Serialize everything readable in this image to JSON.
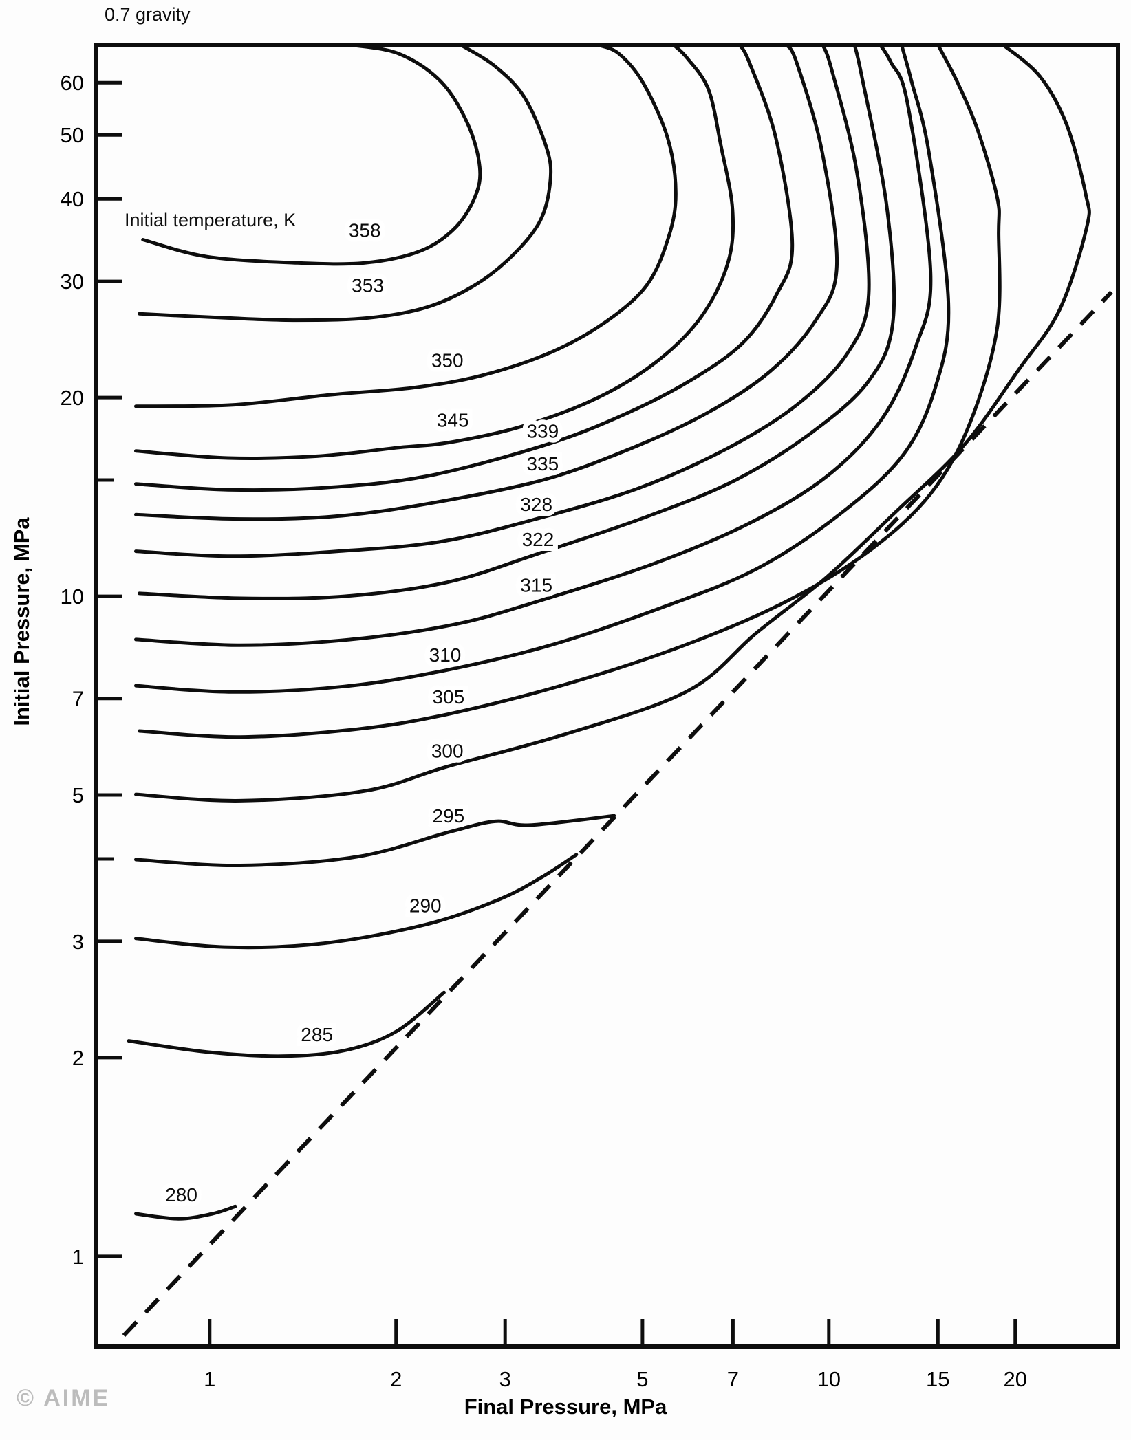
{
  "title": "0.7 gravity",
  "watermark": "© AIME",
  "chart_data": {
    "type": "contour",
    "title": "0.7 gravity",
    "xlabel": "Final Pressure, MPa",
    "ylabel": "Initial Pressure, MPa",
    "contour_set_label": "Initial temperature, K",
    "x_scale": "log",
    "y_scale": "log",
    "xlim": [
      0.656,
      29.3
    ],
    "ylim": [
      0.73,
      68.5
    ],
    "grid": false,
    "line_color": "#0d0d0d",
    "x_ticks": [
      {
        "value": 1,
        "label": "1"
      },
      {
        "value": 2,
        "label": "2"
      },
      {
        "value": 3,
        "label": "3"
      },
      {
        "value": 5,
        "label": "5"
      },
      {
        "value": 7,
        "label": "7"
      },
      {
        "value": 10,
        "label": "10"
      },
      {
        "value": 15,
        "label": "15"
      },
      {
        "value": 20,
        "label": "20"
      }
    ],
    "y_ticks": [
      {
        "value": 1,
        "label": "1"
      },
      {
        "value": 2,
        "label": "2"
      },
      {
        "value": 3,
        "label": "3"
      },
      {
        "value": 4,
        "label": ""
      },
      {
        "value": 5,
        "label": "5"
      },
      {
        "value": 7,
        "label": "7"
      },
      {
        "value": 10,
        "label": "10"
      },
      {
        "value": 15,
        "label": ""
      },
      {
        "value": 20,
        "label": "20"
      },
      {
        "value": 30,
        "label": "30"
      },
      {
        "value": 40,
        "label": "40"
      },
      {
        "value": 50,
        "label": "50"
      },
      {
        "value": 60,
        "label": "60"
      }
    ],
    "identity_line": {
      "style": "dashed",
      "meaning": "Final pressure equals initial pressure (y = x)",
      "points": [
        [
          0.67,
          0.7
        ],
        [
          28.6,
          28.9
        ]
      ]
    },
    "contours": [
      {
        "level": 280,
        "label": "280",
        "label_pos": [
          0.9,
          1.24
        ],
        "points": [
          [
            0.76,
            1.16
          ],
          [
            0.89,
            1.14
          ],
          [
            1.01,
            1.16
          ],
          [
            1.1,
            1.19
          ]
        ]
      },
      {
        "level": 285,
        "label": "285",
        "label_pos": [
          1.49,
          2.17
        ],
        "points": [
          [
            0.74,
            2.12
          ],
          [
            0.99,
            2.04
          ],
          [
            1.31,
            2.01
          ],
          [
            1.65,
            2.05
          ],
          [
            2.0,
            2.19
          ],
          [
            2.39,
            2.51
          ]
        ]
      },
      {
        "level": 290,
        "label": "290",
        "label_pos": [
          2.23,
          3.4
        ],
        "points": [
          [
            0.76,
            3.03
          ],
          [
            1.07,
            2.94
          ],
          [
            1.53,
            2.98
          ],
          [
            2.23,
            3.18
          ],
          [
            2.93,
            3.47
          ],
          [
            3.45,
            3.76
          ],
          [
            3.91,
            4.06
          ]
        ]
      },
      {
        "level": 295,
        "label": "295",
        "label_pos": [
          2.43,
          4.65
        ],
        "points": [
          [
            0.76,
            3.99
          ],
          [
            1.12,
            3.91
          ],
          [
            1.73,
            4.03
          ],
          [
            2.43,
            4.39
          ],
          [
            2.89,
            4.56
          ],
          [
            3.29,
            4.5
          ],
          [
            4.5,
            4.65
          ]
        ]
      },
      {
        "level": 300,
        "label": "300",
        "label_pos": [
          2.42,
          5.84
        ],
        "points": [
          [
            0.76,
            5.01
          ],
          [
            1.12,
            4.9
          ],
          [
            1.78,
            5.07
          ],
          [
            2.42,
            5.52
          ],
          [
            3.73,
            6.17
          ],
          [
            5.91,
            7.18
          ],
          [
            7.64,
            8.8
          ],
          [
            9.93,
            10.7
          ],
          [
            12.8,
            13.4
          ],
          [
            16.5,
            16.9
          ],
          [
            20.3,
            22.1
          ],
          [
            23.6,
            27.2
          ],
          [
            26.1,
            36.3
          ],
          [
            26.0,
            40.6
          ],
          [
            24.2,
            51.9
          ],
          [
            21.9,
            61.4
          ],
          [
            19.1,
            68.5
          ]
        ]
      },
      {
        "level": 305,
        "label": "305",
        "label_pos": [
          2.43,
          7.05
        ],
        "points": [
          [
            0.77,
            6.25
          ],
          [
            1.12,
            6.12
          ],
          [
            1.73,
            6.29
          ],
          [
            2.43,
            6.63
          ],
          [
            3.73,
            7.34
          ],
          [
            5.77,
            8.39
          ],
          [
            8.48,
            9.79
          ],
          [
            11.6,
            11.7
          ],
          [
            14.6,
            14.3
          ],
          [
            16.9,
            18.3
          ],
          [
            18.7,
            25.5
          ],
          [
            18.8,
            35.5
          ],
          [
            18.7,
            40.2
          ],
          [
            17.4,
            50.8
          ],
          [
            16.1,
            60.3
          ],
          [
            15.0,
            68.5
          ]
        ]
      },
      {
        "level": 310,
        "label": "310",
        "label_pos": [
          2.4,
          8.16
        ],
        "points": [
          [
            0.76,
            7.32
          ],
          [
            1.09,
            7.16
          ],
          [
            1.65,
            7.3
          ],
          [
            2.4,
            7.72
          ],
          [
            3.55,
            8.43
          ],
          [
            5.35,
            9.6
          ],
          [
            7.64,
            11.0
          ],
          [
            10.4,
            13.3
          ],
          [
            13.2,
            16.4
          ],
          [
            14.9,
            20.9
          ],
          [
            15.6,
            27.8
          ],
          [
            14.5,
            47.2
          ],
          [
            13.6,
            60.3
          ],
          [
            13.1,
            68.5
          ]
        ]
      },
      {
        "level": 315,
        "label": "315",
        "label_pos": [
          3.37,
          10.4
        ],
        "points": [
          [
            0.76,
            8.6
          ],
          [
            1.12,
            8.43
          ],
          [
            1.69,
            8.6
          ],
          [
            2.48,
            9.06
          ],
          [
            3.37,
            9.81
          ],
          [
            5.21,
            11.2
          ],
          [
            7.44,
            12.9
          ],
          [
            9.93,
            15.2
          ],
          [
            12.2,
            18.6
          ],
          [
            13.8,
            23.8
          ],
          [
            14.6,
            30.9
          ],
          [
            13.4,
            55.8
          ],
          [
            12.6,
            64.4
          ],
          [
            12.1,
            68.5
          ]
        ]
      },
      {
        "level": 322,
        "label": "322",
        "label_pos": [
          3.39,
          12.2
        ],
        "points": [
          [
            0.77,
            10.1
          ],
          [
            1.12,
            9.93
          ],
          [
            1.65,
            10.0
          ],
          [
            2.42,
            10.5
          ],
          [
            3.39,
            11.6
          ],
          [
            5.08,
            13.2
          ],
          [
            7.07,
            15.0
          ],
          [
            9.38,
            17.7
          ],
          [
            11.6,
            21.2
          ],
          [
            12.7,
            26.2
          ],
          [
            12.4,
            39.0
          ],
          [
            11.3,
            61.4
          ],
          [
            11.0,
            68.5
          ]
        ]
      },
      {
        "level": 328,
        "label": "328",
        "label_pos": [
          3.37,
          13.8
        ],
        "points": [
          [
            0.76,
            11.7
          ],
          [
            1.09,
            11.5
          ],
          [
            1.61,
            11.7
          ],
          [
            2.36,
            12.1
          ],
          [
            3.37,
            13.1
          ],
          [
            4.95,
            14.6
          ],
          [
            6.9,
            16.8
          ],
          [
            8.88,
            19.5
          ],
          [
            10.7,
            23.3
          ],
          [
            11.6,
            28.7
          ],
          [
            11.1,
            43.9
          ],
          [
            10.1,
            62.9
          ],
          [
            9.77,
            68.5
          ]
        ]
      },
      {
        "level": 335,
        "label": "335",
        "label_pos": [
          3.45,
          15.9
        ],
        "points": [
          [
            0.76,
            13.3
          ],
          [
            1.09,
            13.1
          ],
          [
            1.57,
            13.2
          ],
          [
            2.24,
            13.8
          ],
          [
            3.45,
            15.0
          ],
          [
            4.83,
            16.8
          ],
          [
            6.39,
            19.0
          ],
          [
            8.03,
            21.9
          ],
          [
            9.5,
            26.1
          ],
          [
            10.3,
            31.6
          ],
          [
            9.75,
            47.2
          ],
          [
            8.87,
            64.4
          ],
          [
            8.54,
            68.5
          ]
        ]
      },
      {
        "level": 339,
        "label": "339",
        "label_pos": [
          3.45,
          17.8
        ],
        "points": [
          [
            0.76,
            14.8
          ],
          [
            1.07,
            14.5
          ],
          [
            1.53,
            14.6
          ],
          [
            2.24,
            15.2
          ],
          [
            3.45,
            16.9
          ],
          [
            4.58,
            18.7
          ],
          [
            5.91,
            21.1
          ],
          [
            7.26,
            24.2
          ],
          [
            8.24,
            28.7
          ],
          [
            8.73,
            34.1
          ],
          [
            8.21,
            49.5
          ],
          [
            7.44,
            64.4
          ],
          [
            7.17,
            68.5
          ]
        ]
      },
      {
        "level": 345,
        "label": "345",
        "label_pos": [
          2.47,
          18.5
        ],
        "points": [
          [
            0.76,
            16.6
          ],
          [
            1.07,
            16.2
          ],
          [
            1.49,
            16.3
          ],
          [
            2.02,
            16.8
          ],
          [
            2.44,
            17.1
          ],
          [
            3.2,
            18.1
          ],
          [
            4.24,
            20.0
          ],
          [
            5.28,
            22.7
          ],
          [
            6.22,
            26.5
          ],
          [
            6.87,
            32.0
          ],
          [
            6.99,
            38.5
          ],
          [
            6.69,
            48.3
          ],
          [
            6.39,
            58.6
          ],
          [
            5.91,
            65.3
          ],
          [
            5.61,
            68.5
          ]
        ]
      },
      {
        "level": 350,
        "label": "350",
        "label_pos": [
          2.42,
          22.8
        ],
        "points": [
          [
            0.76,
            19.4
          ],
          [
            1.09,
            19.5
          ],
          [
            1.57,
            20.2
          ],
          [
            2.13,
            20.7
          ],
          [
            2.75,
            21.6
          ],
          [
            3.55,
            23.4
          ],
          [
            4.35,
            26.0
          ],
          [
            5.08,
            29.6
          ],
          [
            5.51,
            35.0
          ],
          [
            5.66,
            40.9
          ],
          [
            5.49,
            49.5
          ],
          [
            5.01,
            60.0
          ],
          [
            4.58,
            66.4
          ],
          [
            4.23,
            68.5
          ]
        ]
      },
      {
        "level": 353,
        "label": "353",
        "label_pos": [
          1.8,
          29.6
        ],
        "points": [
          [
            0.77,
            26.8
          ],
          [
            1.07,
            26.4
          ],
          [
            1.38,
            26.2
          ],
          [
            1.8,
            26.4
          ],
          [
            2.24,
            27.4
          ],
          [
            2.68,
            29.6
          ],
          [
            3.08,
            32.8
          ],
          [
            3.42,
            37.1
          ],
          [
            3.55,
            42.7
          ],
          [
            3.5,
            47.8
          ],
          [
            3.22,
            57.1
          ],
          [
            2.88,
            63.7
          ],
          [
            2.54,
            68.5
          ]
        ]
      },
      {
        "level": 358,
        "label": "358",
        "label_pos": [
          1.78,
          35.9
        ],
        "points": [
          [
            0.78,
            34.7
          ],
          [
            0.99,
            32.7
          ],
          [
            1.38,
            32.0
          ],
          [
            1.78,
            32.0
          ],
          [
            2.18,
            33.3
          ],
          [
            2.48,
            36.0
          ],
          [
            2.68,
            40.2
          ],
          [
            2.73,
            44.7
          ],
          [
            2.61,
            52.0
          ],
          [
            2.36,
            60.3
          ],
          [
            2.02,
            66.4
          ],
          [
            1.68,
            68.5
          ]
        ]
      }
    ]
  }
}
